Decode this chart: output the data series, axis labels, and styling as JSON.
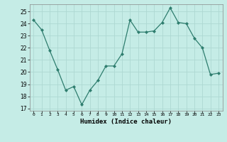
{
  "x": [
    0,
    1,
    2,
    3,
    4,
    5,
    6,
    7,
    8,
    9,
    10,
    11,
    12,
    13,
    14,
    15,
    16,
    17,
    18,
    19,
    20,
    21,
    22,
    23
  ],
  "y": [
    24.3,
    23.5,
    21.8,
    20.2,
    18.5,
    18.8,
    17.3,
    18.5,
    19.3,
    20.5,
    20.5,
    21.5,
    24.3,
    23.3,
    23.3,
    23.4,
    24.1,
    25.3,
    24.1,
    24.0,
    22.8,
    22.0,
    19.8,
    19.9
  ],
  "xlabel": "Humidex (Indice chaleur)",
  "ylim": [
    16.8,
    25.6
  ],
  "yticks": [
    17,
    18,
    19,
    20,
    21,
    22,
    23,
    24,
    25
  ],
  "xticks": [
    0,
    1,
    2,
    3,
    4,
    5,
    6,
    7,
    8,
    9,
    10,
    11,
    12,
    13,
    14,
    15,
    16,
    17,
    18,
    19,
    20,
    21,
    22,
    23
  ],
  "line_color": "#2e7d6e",
  "marker_color": "#2e7d6e",
  "bg_color": "#c5ece6",
  "grid_color": "#aed8d2"
}
